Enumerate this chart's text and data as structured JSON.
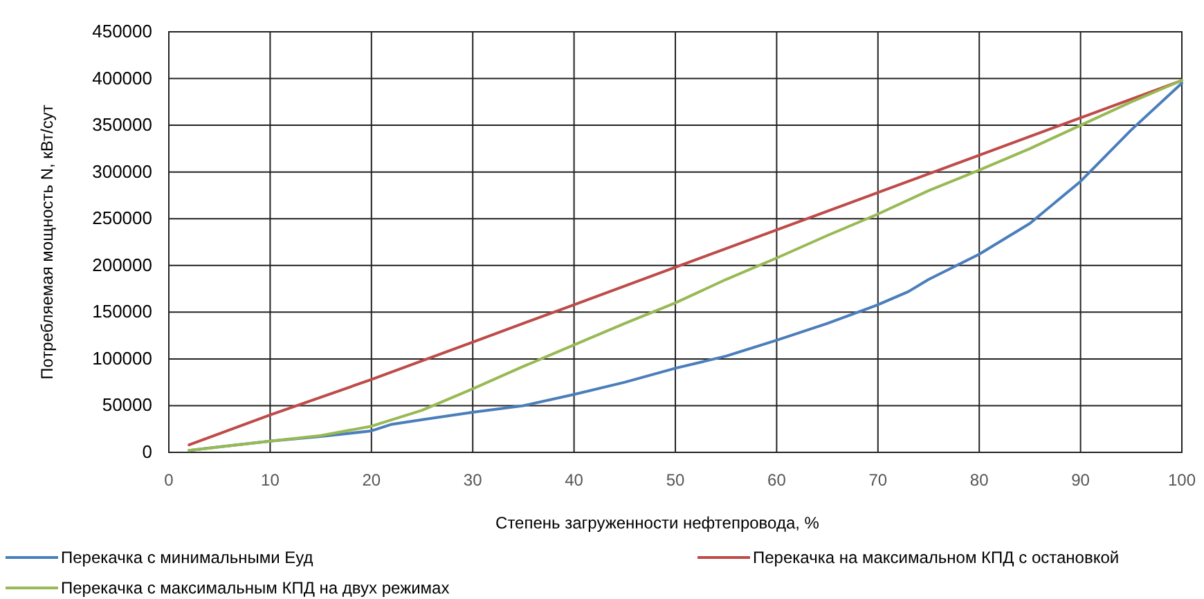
{
  "chart_data": {
    "type": "line",
    "xlabel": "Степень  загруженности нефтепровода,  %",
    "ylabel": "Потребляемая мощность N, кВт/сут",
    "xlim": [
      0,
      100
    ],
    "xticks": [
      0,
      10,
      20,
      30,
      40,
      50,
      60,
      70,
      80,
      90,
      100
    ],
    "ylim": [
      0,
      450000
    ],
    "yticks": [
      0,
      50000,
      100000,
      150000,
      200000,
      250000,
      300000,
      350000,
      400000,
      450000
    ],
    "grid": true,
    "legend": "bottom",
    "marker": "none",
    "line_style": "solid",
    "series": [
      {
        "name": "Перекачка с минимальными Еуд",
        "color": "#4a7ebb",
        "x": [
          2,
          5,
          10,
          15,
          20,
          22,
          25,
          30,
          35,
          40,
          45,
          50,
          55,
          60,
          65,
          70,
          73,
          75,
          80,
          85,
          90,
          95,
          100
        ],
        "values": [
          2000,
          6000,
          12000,
          17000,
          23000,
          30000,
          35000,
          43000,
          50000,
          62000,
          75000,
          90000,
          103000,
          120000,
          138000,
          158000,
          172000,
          185000,
          212000,
          245000,
          290000,
          345000,
          395000
        ]
      },
      {
        "name": "Перекачка на максимальном КПД с остановкой",
        "color": "#be4b48",
        "x": [
          2,
          10,
          20,
          30,
          40,
          50,
          60,
          70,
          80,
          90,
          100
        ],
        "values": [
          8000,
          40000,
          78000,
          118000,
          158000,
          198000,
          238000,
          278000,
          318000,
          358000,
          398000
        ]
      },
      {
        "name": "Перекачка с максимальным КПД на двух режимах",
        "color": "#98b954",
        "x": [
          2,
          10,
          15,
          20,
          25,
          30,
          35,
          40,
          45,
          50,
          55,
          60,
          65,
          70,
          75,
          80,
          85,
          90,
          95,
          100
        ],
        "values": [
          2000,
          12000,
          18000,
          28000,
          45000,
          68000,
          92000,
          115000,
          138000,
          160000,
          185000,
          208000,
          232000,
          255000,
          280000,
          302000,
          325000,
          350000,
          375000,
          398000
        ]
      }
    ]
  }
}
